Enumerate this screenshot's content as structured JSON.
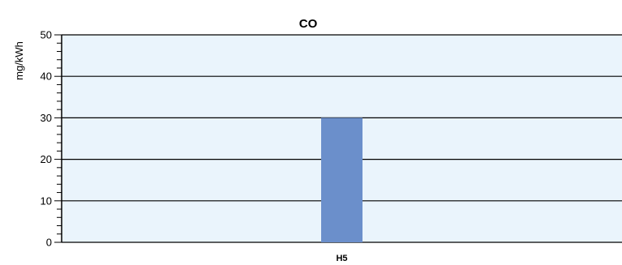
{
  "chart_data": {
    "type": "bar",
    "title": "CO",
    "ylabel": "mg/kWh",
    "xlabel": "",
    "categories": [
      "H5"
    ],
    "values": [
      30
    ],
    "ylim": [
      0,
      50
    ],
    "yticks": [
      0,
      10,
      20,
      30,
      40,
      50
    ],
    "minor_ticks_per_major": 5,
    "grid": true,
    "colors": {
      "plot_background": "#eaf4fc",
      "bar": "#6b8fcb",
      "grid": "#000000"
    }
  }
}
